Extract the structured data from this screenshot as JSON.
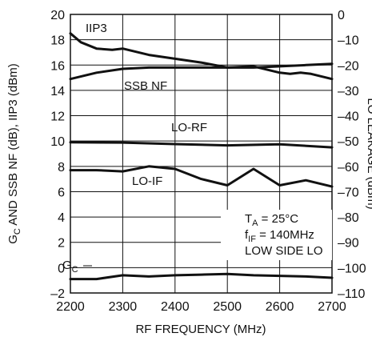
{
  "chart_data": {
    "type": "line",
    "xlabel": "RF FREQUENCY (MHz)",
    "ylabel_left": "G_C AND SSB NF (dB), IIP3 (dBm)",
    "ylabel_left_parts": {
      "g": "G",
      "sub": "C",
      "rest": " AND SSB NF (dB), IIP3 (dBm)"
    },
    "ylabel_right": "LO LEAKAGE (dBm)",
    "xlim": [
      2200,
      2700
    ],
    "ylim_left": [
      -2,
      20
    ],
    "ylim_right": [
      -110,
      0
    ],
    "grid": true,
    "x_ticks": [
      "2200",
      "2300",
      "2400",
      "2500",
      "2600",
      "2700"
    ],
    "y_left_ticks": [
      "20",
      "18",
      "16",
      "14",
      "12",
      "10",
      "8",
      "6",
      "4",
      "2",
      "0",
      "–2"
    ],
    "y_right_ticks": [
      "0",
      "–10",
      "–20",
      "–30",
      "–40",
      "–50",
      "–60",
      "–70",
      "–80",
      "–90",
      "–100",
      "–110"
    ],
    "series": [
      {
        "name": "IIP3",
        "axis": "left",
        "x": [
          2200,
          2220,
          2250,
          2280,
          2300,
          2350,
          2400,
          2450,
          2500,
          2550,
          2600,
          2620,
          2640,
          2660,
          2700
        ],
        "y": [
          18.5,
          17.8,
          17.3,
          17.2,
          17.3,
          16.8,
          16.5,
          16.2,
          15.8,
          15.9,
          15.4,
          15.3,
          15.4,
          15.3,
          14.9
        ]
      },
      {
        "name": "SSB NF",
        "axis": "left",
        "x": [
          2200,
          2250,
          2300,
          2350,
          2400,
          2450,
          2500,
          2550,
          2600,
          2650,
          2700
        ],
        "y": [
          14.9,
          15.4,
          15.7,
          15.8,
          15.8,
          15.8,
          15.8,
          15.8,
          15.9,
          16.0,
          16.1
        ]
      },
      {
        "name": "LO-RF",
        "axis": "right",
        "x": [
          2200,
          2300,
          2400,
          2500,
          2600,
          2700
        ],
        "y": [
          -50.5,
          -50.6,
          -51.2,
          -51.7,
          -51.3,
          -52.5
        ]
      },
      {
        "name": "LO-IF",
        "axis": "right",
        "x": [
          2200,
          2250,
          2300,
          2350,
          2400,
          2450,
          2500,
          2550,
          2600,
          2650,
          2700
        ],
        "y": [
          -61.5,
          -61.5,
          -62,
          -60,
          -61,
          -65,
          -67.5,
          -61,
          -67.5,
          -65.5,
          -68
        ]
      },
      {
        "name": "G_C",
        "axis": "left",
        "x": [
          2200,
          2250,
          2300,
          2350,
          2400,
          2450,
          2500,
          2550,
          2600,
          2650,
          2700
        ],
        "y": [
          -0.9,
          -0.9,
          -0.6,
          -0.7,
          -0.6,
          -0.55,
          -0.5,
          -0.6,
          -0.65,
          -0.7,
          -0.8
        ]
      }
    ],
    "series_labels": {
      "iip3": "IIP3",
      "ssbnf": "SSB NF",
      "lorf": "LO-RF",
      "loif": "LO-IF",
      "gc_main": "G",
      "gc_sub": "C"
    },
    "annotation": {
      "ta": {
        "main": "T",
        "sub": "A",
        "rest": " = 25°C"
      },
      "fif": {
        "main": "f",
        "sub": "IF",
        "rest": " = 140MHz"
      },
      "lo": "LOW SIDE LO"
    }
  }
}
